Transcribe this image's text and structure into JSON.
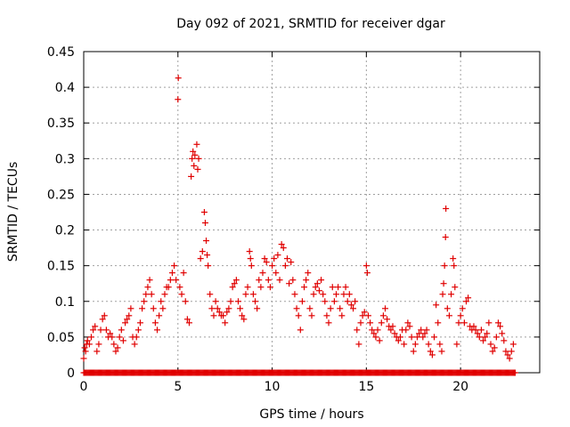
{
  "chart_data": {
    "type": "scatter",
    "title": "Day 092 of 2021, SRMTID for receiver dgar",
    "xlabel": "GPS time / hours",
    "ylabel": "SRMTID / TECUs",
    "xlim": [
      0,
      24.2
    ],
    "ylim": [
      0,
      0.45
    ],
    "xticks": [
      0,
      5,
      10,
      15,
      20
    ],
    "yticks": [
      0,
      0.05,
      0.1,
      0.15,
      0.2,
      0.25,
      0.3,
      0.35,
      0.4,
      0.45
    ],
    "ytick_labels": [
      "0",
      "0.05",
      "0.1",
      "0.15",
      "0.2",
      "0.25",
      "0.3",
      "0.35",
      "0.4",
      "0.45"
    ],
    "grid": true,
    "marker": "+",
    "color": "#e00000",
    "series": [
      {
        "name": "SRMTID",
        "points": [
          [
            0.0,
            0.02
          ],
          [
            0.05,
            0.035
          ],
          [
            0.1,
            0.03
          ],
          [
            0.15,
            0.04
          ],
          [
            0.2,
            0.045
          ],
          [
            0.3,
            0.04
          ],
          [
            0.4,
            0.05
          ],
          [
            0.5,
            0.06
          ],
          [
            0.6,
            0.065
          ],
          [
            0.7,
            0.03
          ],
          [
            0.8,
            0.04
          ],
          [
            0.9,
            0.06
          ],
          [
            1.0,
            0.075
          ],
          [
            1.1,
            0.08
          ],
          [
            1.2,
            0.06
          ],
          [
            1.3,
            0.05
          ],
          [
            1.4,
            0.055
          ],
          [
            1.5,
            0.05
          ],
          [
            1.6,
            0.04
          ],
          [
            1.7,
            0.03
          ],
          [
            1.8,
            0.035
          ],
          [
            1.9,
            0.05
          ],
          [
            2.0,
            0.06
          ],
          [
            2.1,
            0.045
          ],
          [
            2.2,
            0.07
          ],
          [
            2.3,
            0.075
          ],
          [
            2.4,
            0.08
          ],
          [
            2.5,
            0.09
          ],
          [
            2.6,
            0.05
          ],
          [
            2.7,
            0.04
          ],
          [
            2.8,
            0.05
          ],
          [
            2.9,
            0.06
          ],
          [
            3.0,
            0.07
          ],
          [
            3.1,
            0.09
          ],
          [
            3.2,
            0.1
          ],
          [
            3.3,
            0.11
          ],
          [
            3.4,
            0.12
          ],
          [
            3.5,
            0.13
          ],
          [
            3.6,
            0.11
          ],
          [
            3.7,
            0.09
          ],
          [
            3.8,
            0.07
          ],
          [
            3.9,
            0.06
          ],
          [
            4.0,
            0.08
          ],
          [
            4.1,
            0.1
          ],
          [
            4.2,
            0.09
          ],
          [
            4.3,
            0.11
          ],
          [
            4.4,
            0.12
          ],
          [
            4.5,
            0.12
          ],
          [
            4.6,
            0.13
          ],
          [
            4.7,
            0.14
          ],
          [
            4.8,
            0.15
          ],
          [
            4.9,
            0.13
          ],
          [
            5.0,
            0.383
          ],
          [
            5.02,
            0.413
          ],
          [
            5.1,
            0.12
          ],
          [
            5.2,
            0.11
          ],
          [
            5.3,
            0.14
          ],
          [
            5.4,
            0.1
          ],
          [
            5.5,
            0.075
          ],
          [
            5.6,
            0.07
          ],
          [
            5.7,
            0.275
          ],
          [
            5.75,
            0.3
          ],
          [
            5.8,
            0.31
          ],
          [
            5.85,
            0.29
          ],
          [
            5.9,
            0.305
          ],
          [
            6.0,
            0.32
          ],
          [
            6.05,
            0.285
          ],
          [
            6.1,
            0.3
          ],
          [
            6.2,
            0.16
          ],
          [
            6.3,
            0.17
          ],
          [
            6.4,
            0.225
          ],
          [
            6.45,
            0.21
          ],
          [
            6.5,
            0.185
          ],
          [
            6.55,
            0.165
          ],
          [
            6.6,
            0.15
          ],
          [
            6.7,
            0.11
          ],
          [
            6.8,
            0.09
          ],
          [
            6.9,
            0.08
          ],
          [
            7.0,
            0.1
          ],
          [
            7.1,
            0.09
          ],
          [
            7.2,
            0.085
          ],
          [
            7.3,
            0.08
          ],
          [
            7.4,
            0.08
          ],
          [
            7.5,
            0.07
          ],
          [
            7.6,
            0.085
          ],
          [
            7.7,
            0.09
          ],
          [
            7.8,
            0.1
          ],
          [
            7.9,
            0.12
          ],
          [
            8.0,
            0.125
          ],
          [
            8.1,
            0.13
          ],
          [
            8.2,
            0.1
          ],
          [
            8.3,
            0.09
          ],
          [
            8.4,
            0.08
          ],
          [
            8.5,
            0.075
          ],
          [
            8.6,
            0.11
          ],
          [
            8.7,
            0.12
          ],
          [
            8.8,
            0.17
          ],
          [
            8.85,
            0.16
          ],
          [
            8.9,
            0.15
          ],
          [
            9.0,
            0.11
          ],
          [
            9.1,
            0.1
          ],
          [
            9.2,
            0.09
          ],
          [
            9.3,
            0.13
          ],
          [
            9.4,
            0.12
          ],
          [
            9.5,
            0.14
          ],
          [
            9.6,
            0.16
          ],
          [
            9.7,
            0.155
          ],
          [
            9.8,
            0.13
          ],
          [
            9.9,
            0.12
          ],
          [
            10.0,
            0.15
          ],
          [
            10.1,
            0.16
          ],
          [
            10.2,
            0.14
          ],
          [
            10.3,
            0.165
          ],
          [
            10.4,
            0.13
          ],
          [
            10.5,
            0.18
          ],
          [
            10.6,
            0.175
          ],
          [
            10.7,
            0.15
          ],
          [
            10.8,
            0.16
          ],
          [
            10.9,
            0.125
          ],
          [
            11.0,
            0.155
          ],
          [
            11.1,
            0.13
          ],
          [
            11.2,
            0.11
          ],
          [
            11.3,
            0.09
          ],
          [
            11.4,
            0.08
          ],
          [
            11.5,
            0.06
          ],
          [
            11.6,
            0.1
          ],
          [
            11.7,
            0.12
          ],
          [
            11.8,
            0.13
          ],
          [
            11.9,
            0.14
          ],
          [
            12.0,
            0.09
          ],
          [
            12.1,
            0.08
          ],
          [
            12.2,
            0.11
          ],
          [
            12.3,
            0.12
          ],
          [
            12.4,
            0.125
          ],
          [
            12.5,
            0.115
          ],
          [
            12.6,
            0.13
          ],
          [
            12.7,
            0.11
          ],
          [
            12.8,
            0.1
          ],
          [
            12.9,
            0.08
          ],
          [
            13.0,
            0.07
          ],
          [
            13.1,
            0.09
          ],
          [
            13.2,
            0.12
          ],
          [
            13.3,
            0.1
          ],
          [
            13.4,
            0.11
          ],
          [
            13.5,
            0.12
          ],
          [
            13.6,
            0.09
          ],
          [
            13.7,
            0.08
          ],
          [
            13.8,
            0.11
          ],
          [
            13.9,
            0.12
          ],
          [
            14.0,
            0.1
          ],
          [
            14.1,
            0.11
          ],
          [
            14.2,
            0.095
          ],
          [
            14.3,
            0.09
          ],
          [
            14.4,
            0.1
          ],
          [
            14.5,
            0.06
          ],
          [
            14.6,
            0.04
          ],
          [
            14.7,
            0.07
          ],
          [
            14.8,
            0.08
          ],
          [
            14.9,
            0.085
          ],
          [
            15.0,
            0.15
          ],
          [
            15.05,
            0.14
          ],
          [
            15.1,
            0.08
          ],
          [
            15.2,
            0.07
          ],
          [
            15.3,
            0.06
          ],
          [
            15.4,
            0.055
          ],
          [
            15.5,
            0.05
          ],
          [
            15.6,
            0.06
          ],
          [
            15.7,
            0.045
          ],
          [
            15.8,
            0.07
          ],
          [
            15.9,
            0.08
          ],
          [
            16.0,
            0.09
          ],
          [
            16.1,
            0.075
          ],
          [
            16.2,
            0.065
          ],
          [
            16.3,
            0.06
          ],
          [
            16.4,
            0.065
          ],
          [
            16.5,
            0.055
          ],
          [
            16.6,
            0.05
          ],
          [
            16.7,
            0.045
          ],
          [
            16.8,
            0.05
          ],
          [
            16.9,
            0.06
          ],
          [
            17.0,
            0.04
          ],
          [
            17.1,
            0.06
          ],
          [
            17.2,
            0.07
          ],
          [
            17.3,
            0.065
          ],
          [
            17.4,
            0.05
          ],
          [
            17.5,
            0.03
          ],
          [
            17.6,
            0.04
          ],
          [
            17.7,
            0.05
          ],
          [
            17.8,
            0.055
          ],
          [
            17.9,
            0.06
          ],
          [
            18.0,
            0.05
          ],
          [
            18.1,
            0.055
          ],
          [
            18.2,
            0.06
          ],
          [
            18.3,
            0.04
          ],
          [
            18.4,
            0.03
          ],
          [
            18.5,
            0.025
          ],
          [
            18.6,
            0.05
          ],
          [
            18.7,
            0.095
          ],
          [
            18.8,
            0.07
          ],
          [
            18.9,
            0.04
          ],
          [
            19.0,
            0.03
          ],
          [
            19.05,
            0.11
          ],
          [
            19.1,
            0.125
          ],
          [
            19.15,
            0.15
          ],
          [
            19.2,
            0.19
          ],
          [
            19.22,
            0.23
          ],
          [
            19.3,
            0.09
          ],
          [
            19.4,
            0.08
          ],
          [
            19.5,
            0.11
          ],
          [
            19.6,
            0.16
          ],
          [
            19.65,
            0.15
          ],
          [
            19.7,
            0.12
          ],
          [
            19.8,
            0.04
          ],
          [
            19.9,
            0.07
          ],
          [
            20.0,
            0.08
          ],
          [
            20.1,
            0.09
          ],
          [
            20.2,
            0.07
          ],
          [
            20.3,
            0.1
          ],
          [
            20.4,
            0.105
          ],
          [
            20.5,
            0.065
          ],
          [
            20.6,
            0.06
          ],
          [
            20.7,
            0.065
          ],
          [
            20.8,
            0.06
          ],
          [
            20.9,
            0.055
          ],
          [
            21.0,
            0.05
          ],
          [
            21.1,
            0.06
          ],
          [
            21.2,
            0.045
          ],
          [
            21.3,
            0.05
          ],
          [
            21.4,
            0.055
          ],
          [
            21.5,
            0.07
          ],
          [
            21.6,
            0.04
          ],
          [
            21.7,
            0.03
          ],
          [
            21.8,
            0.035
          ],
          [
            21.9,
            0.05
          ],
          [
            22.0,
            0.07
          ],
          [
            22.1,
            0.065
          ],
          [
            22.2,
            0.055
          ],
          [
            22.3,
            0.045
          ],
          [
            22.4,
            0.03
          ],
          [
            22.5,
            0.025
          ],
          [
            22.6,
            0.02
          ],
          [
            22.7,
            0.03
          ],
          [
            22.8,
            0.04
          ]
        ]
      }
    ],
    "zero_band": {
      "description_values_at_zero": [
        [
          0.0,
          22.9
        ]
      ],
      "step_hours": 0.05
    }
  }
}
